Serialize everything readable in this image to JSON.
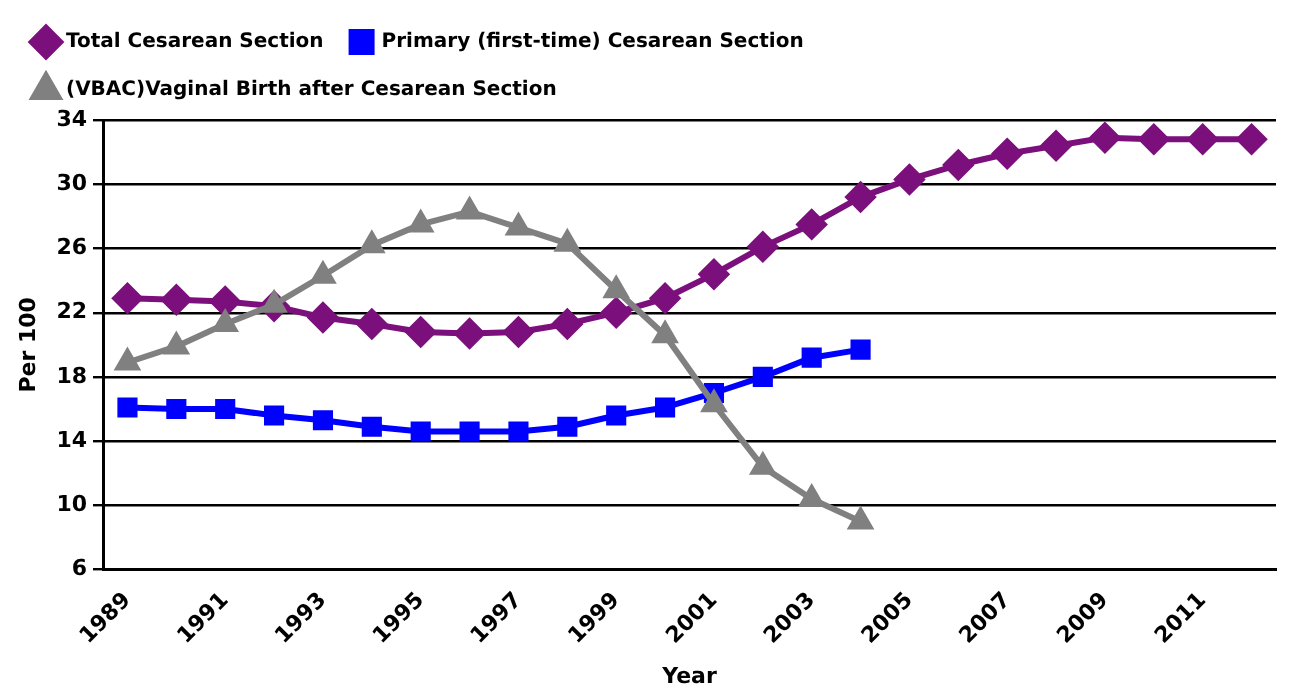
{
  "chart_data": {
    "type": "line",
    "xlabel": "Year",
    "ylabel": "Per 100",
    "categories": [
      "1989",
      null,
      "1991",
      null,
      "1993",
      null,
      "1995",
      null,
      "1997",
      null,
      "1999",
      null,
      "2001",
      null,
      "2003",
      null,
      "2005",
      null,
      "2007",
      null,
      "2009",
      null,
      "2011",
      null
    ],
    "series": [
      {
        "name": "Total Cesarean Section",
        "color": "#7b0f7b",
        "marker": "diamond",
        "values": [
          22.9,
          22.8,
          22.7,
          22.4,
          21.7,
          21.3,
          20.8,
          20.7,
          20.8,
          21.3,
          22.0,
          22.9,
          24.4,
          26.1,
          27.5,
          29.2,
          30.3,
          31.2,
          31.9,
          32.4,
          32.9,
          32.8,
          32.8,
          32.8
        ]
      },
      {
        "name": "Primary (first-time) Cesarean Section",
        "color": "#0000ff",
        "marker": "square",
        "values": [
          16.1,
          16.0,
          16.0,
          15.6,
          15.3,
          14.9,
          14.6,
          14.6,
          14.6,
          14.9,
          15.6,
          16.1,
          17.0,
          18.0,
          19.2,
          19.7,
          null,
          null,
          null,
          null,
          null,
          null,
          null,
          null
        ]
      },
      {
        "name": "(VBAC)Vaginal Birth after Cesarean Section",
        "color": "#808080",
        "marker": "triangle",
        "values": [
          18.9,
          19.9,
          21.3,
          22.5,
          24.3,
          26.2,
          27.5,
          28.3,
          27.3,
          26.3,
          23.4,
          20.6,
          16.3,
          12.4,
          10.4,
          9.0,
          null,
          null,
          null,
          null,
          null,
          null,
          null,
          null
        ]
      }
    ],
    "ylim": [
      6,
      34
    ],
    "yticks": [
      6,
      10,
      14,
      18,
      22,
      26,
      30,
      34
    ],
    "grid": "y",
    "legend": "top left",
    "line_style": "solid"
  }
}
